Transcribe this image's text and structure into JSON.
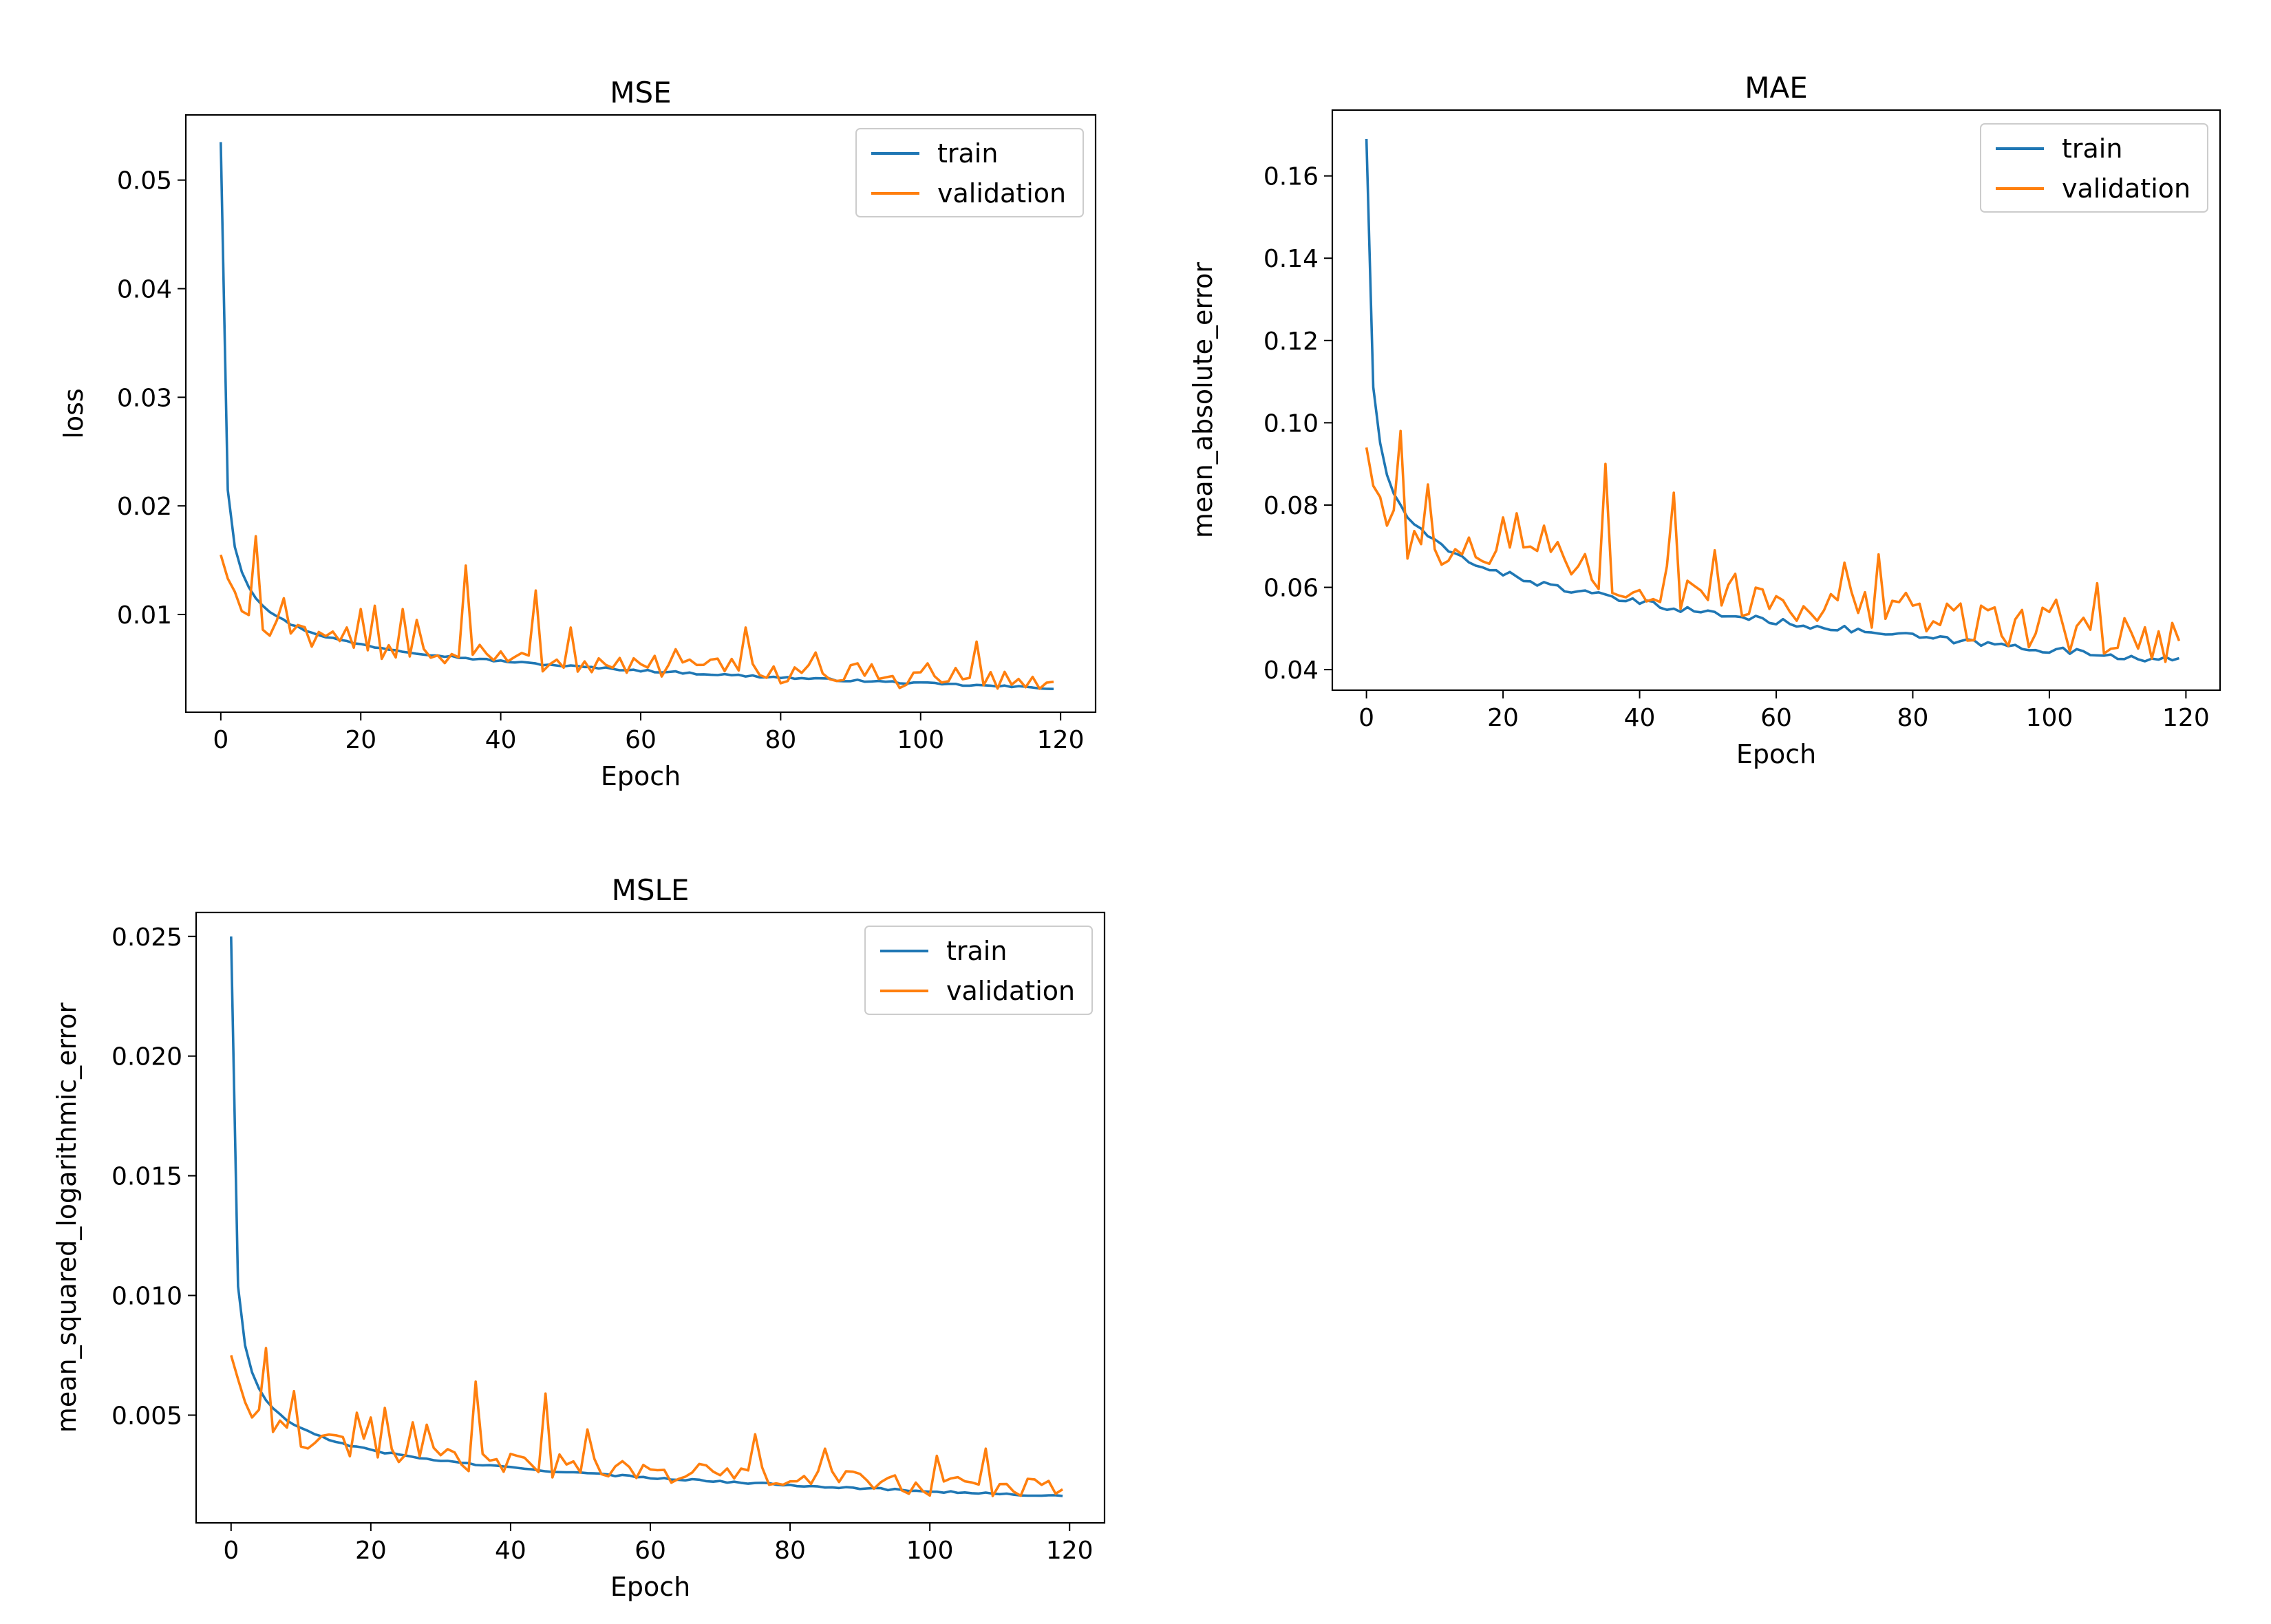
{
  "figure": {
    "background": "#ffffff",
    "series_colors": {
      "train": "#1f77b4",
      "validation": "#ff7f0e"
    }
  },
  "chart_data": [
    {
      "type": "line",
      "title": "MSE",
      "xlabel": "Epoch",
      "ylabel": "loss",
      "xlim": [
        -5,
        125
      ],
      "ylim": [
        0.001,
        0.056
      ],
      "xticks": [
        0,
        20,
        40,
        60,
        80,
        100,
        120
      ],
      "xtick_labels": [
        "0",
        "20",
        "40",
        "60",
        "80",
        "100",
        "120"
      ],
      "yticks": [
        0.01,
        0.02,
        0.03,
        0.04,
        0.05
      ],
      "ytick_labels": [
        "0.01",
        "0.02",
        "0.03",
        "0.04",
        "0.05"
      ],
      "grid": false,
      "legend": {
        "position": "top-right",
        "entries": [
          "train",
          "validation"
        ]
      },
      "x": {
        "start": 0,
        "end": 119
      },
      "series": [
        {
          "name": "train",
          "color": "#1f77b4",
          "start": 0.0535,
          "second": 0.0215,
          "end": 0.0032,
          "decay": 0.48,
          "noise": 0.0001,
          "spikes": []
        },
        {
          "name": "validation",
          "color": "#ff7f0e",
          "start": 0.0155,
          "second": 0.0138,
          "end": 0.0038,
          "decay": 0.35,
          "noise": 0.0011,
          "spikes": [
            [
              3,
              0.0103
            ],
            [
              5,
              0.0172
            ],
            [
              6,
              0.0086
            ],
            [
              9,
              0.0115
            ],
            [
              18,
              0.0088
            ],
            [
              20,
              0.0105
            ],
            [
              22,
              0.0108
            ],
            [
              26,
              0.0105
            ],
            [
              28,
              0.0095
            ],
            [
              35,
              0.0145
            ],
            [
              37,
              0.0072
            ],
            [
              45,
              0.0122
            ],
            [
              50,
              0.0088
            ],
            [
              65,
              0.0068
            ],
            [
              75,
              0.0088
            ],
            [
              85,
              0.0065
            ],
            [
              101,
              0.0055
            ],
            [
              108,
              0.0075
            ],
            [
              119,
              0.0038
            ]
          ]
        }
      ]
    },
    {
      "type": "line",
      "title": "MAE",
      "xlabel": "Epoch",
      "ylabel": "mean_absolute_error",
      "xlim": [
        -5,
        125
      ],
      "ylim": [
        0.035,
        0.176
      ],
      "xticks": [
        0,
        20,
        40,
        60,
        80,
        100,
        120
      ],
      "xtick_labels": [
        "0",
        "20",
        "40",
        "60",
        "80",
        "100",
        "120"
      ],
      "yticks": [
        0.04,
        0.06,
        0.08,
        0.1,
        0.12,
        0.14,
        0.16
      ],
      "ytick_labels": [
        "0.04",
        "0.06",
        "0.08",
        "0.10",
        "0.12",
        "0.14",
        "0.16"
      ],
      "grid": false,
      "legend": {
        "position": "top-right",
        "entries": [
          "train",
          "validation"
        ]
      },
      "x": {
        "start": 0,
        "end": 119
      },
      "series": [
        {
          "name": "train",
          "color": "#1f77b4",
          "start": 0.169,
          "second": 0.109,
          "end": 0.042,
          "decay": 0.35,
          "noise": 0.0008,
          "spikes": []
        },
        {
          "name": "validation",
          "color": "#ff7f0e",
          "start": 0.094,
          "second": 0.087,
          "end": 0.047,
          "decay": 0.2,
          "noise": 0.0055,
          "spikes": [
            [
              3,
              0.075
            ],
            [
              5,
              0.098
            ],
            [
              6,
              0.067
            ],
            [
              9,
              0.085
            ],
            [
              14,
              0.068
            ],
            [
              20,
              0.077
            ],
            [
              22,
              0.078
            ],
            [
              26,
              0.075
            ],
            [
              28,
              0.071
            ],
            [
              35,
              0.09
            ],
            [
              37,
              0.058
            ],
            [
              45,
              0.083
            ],
            [
              51,
              0.069
            ],
            [
              70,
              0.066
            ],
            [
              75,
              0.068
            ],
            [
              85,
              0.056
            ],
            [
              101,
              0.057
            ],
            [
              107,
              0.061
            ],
            [
              119,
              0.047
            ]
          ]
        }
      ]
    },
    {
      "type": "line",
      "title": "MSLE",
      "xlabel": "Epoch",
      "ylabel": "mean_squared_logarithmic_error",
      "xlim": [
        -5,
        125
      ],
      "ylim": [
        0.0005,
        0.026
      ],
      "xticks": [
        0,
        20,
        40,
        60,
        80,
        100,
        120
      ],
      "xtick_labels": [
        "0",
        "20",
        "40",
        "60",
        "80",
        "100",
        "120"
      ],
      "yticks": [
        0.005,
        0.01,
        0.015,
        0.02,
        0.025
      ],
      "ytick_labels": [
        "0.005",
        "0.010",
        "0.015",
        "0.020",
        "0.025"
      ],
      "grid": false,
      "legend": {
        "position": "top-right",
        "entries": [
          "train",
          "validation"
        ]
      },
      "x": {
        "start": 0,
        "end": 119
      },
      "series": [
        {
          "name": "train",
          "color": "#1f77b4",
          "start": 0.025,
          "second": 0.0104,
          "end": 0.0016,
          "decay": 0.48,
          "noise": 4e-05,
          "spikes": []
        },
        {
          "name": "validation",
          "color": "#ff7f0e",
          "start": 0.0075,
          "second": 0.0067,
          "end": 0.0019,
          "decay": 0.33,
          "noise": 0.0005,
          "spikes": [
            [
              3,
              0.0049
            ],
            [
              5,
              0.0078
            ],
            [
              6,
              0.0043
            ],
            [
              9,
              0.006
            ],
            [
              18,
              0.0051
            ],
            [
              20,
              0.0049
            ],
            [
              22,
              0.0053
            ],
            [
              26,
              0.0047
            ],
            [
              28,
              0.0046
            ],
            [
              35,
              0.0064
            ],
            [
              37,
              0.0031
            ],
            [
              45,
              0.0059
            ],
            [
              51,
              0.0044
            ],
            [
              75,
              0.0042
            ],
            [
              85,
              0.0036
            ],
            [
              101,
              0.0033
            ],
            [
              108,
              0.0036
            ],
            [
              119,
              0.0019
            ]
          ]
        }
      ]
    }
  ]
}
